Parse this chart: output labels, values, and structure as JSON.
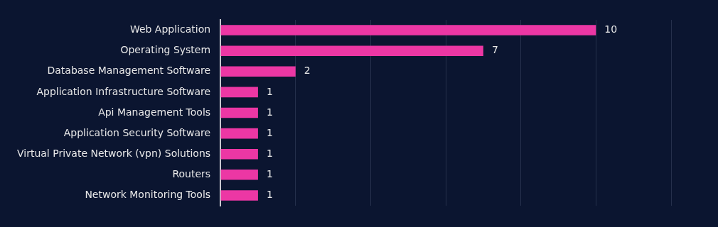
{
  "chart_data": {
    "type": "bar",
    "orientation": "horizontal",
    "categories": [
      "Web Application",
      "Operating System",
      "Database Management Software",
      "Application Infrastructure Software",
      "Api Management Tools",
      "Application Security Software",
      "Virtual Private Network (vpn) Solutions",
      "Routers",
      "Network Monitoring Tools"
    ],
    "values": [
      10,
      7,
      2,
      1,
      1,
      1,
      1,
      1,
      1
    ],
    "color": "#ec37a4",
    "xlim": [
      0,
      12
    ],
    "xticks": [
      {
        "value": 0,
        "label": null
      },
      {
        "value": 2,
        "label": null
      },
      {
        "value": 4,
        "label": null
      },
      {
        "value": 6,
        "label": null
      },
      {
        "value": 8,
        "label": null
      },
      {
        "value": 10,
        "label": null
      },
      {
        "value": 12,
        "label": null
      }
    ],
    "tick_labels": "y",
    "grid": "x",
    "data_labels": true,
    "legend": false
  }
}
